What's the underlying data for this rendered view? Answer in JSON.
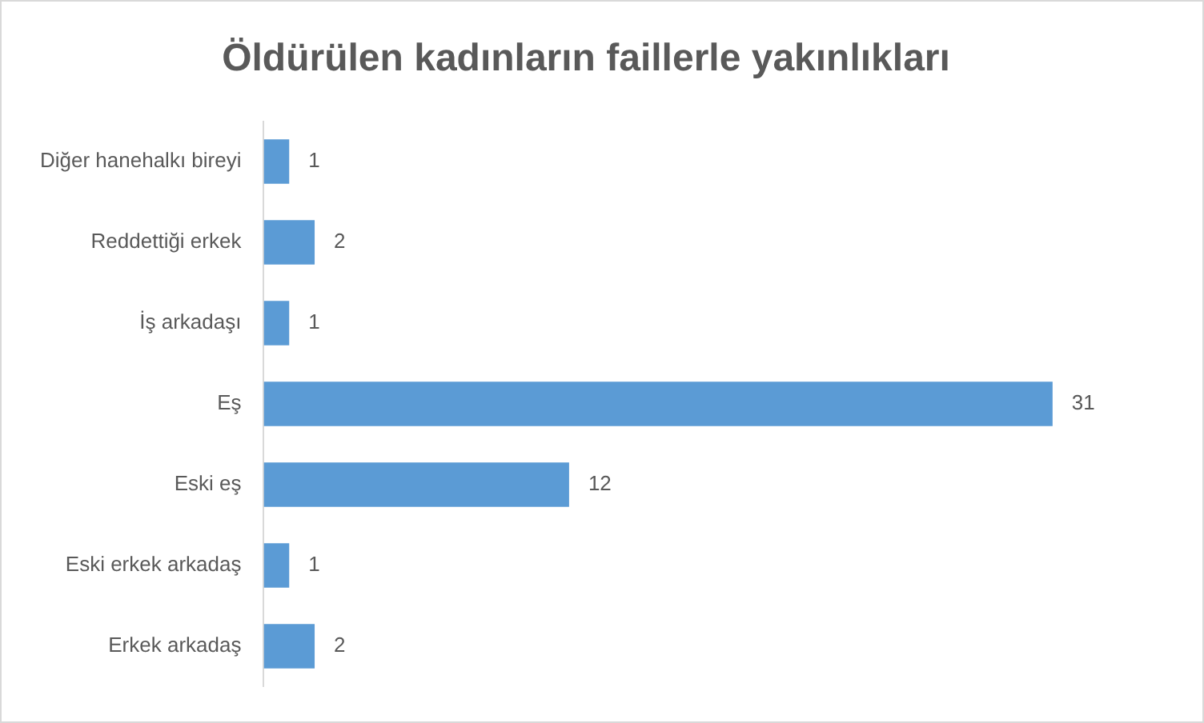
{
  "chart_data": {
    "type": "bar",
    "orientation": "horizontal",
    "title": "Öldürülen kadınların faillerle yakınlıkları",
    "categories": [
      "Diğer hanehalkı bireyi",
      "Reddettiği erkek",
      "İş arkadaşı",
      "Eş",
      "Eski eş",
      "Eski erkek arkadaş",
      "Erkek arkadaş"
    ],
    "values": [
      1,
      2,
      1,
      31,
      12,
      1,
      2
    ],
    "color": "#5b9bd5",
    "data_labels": true
  }
}
